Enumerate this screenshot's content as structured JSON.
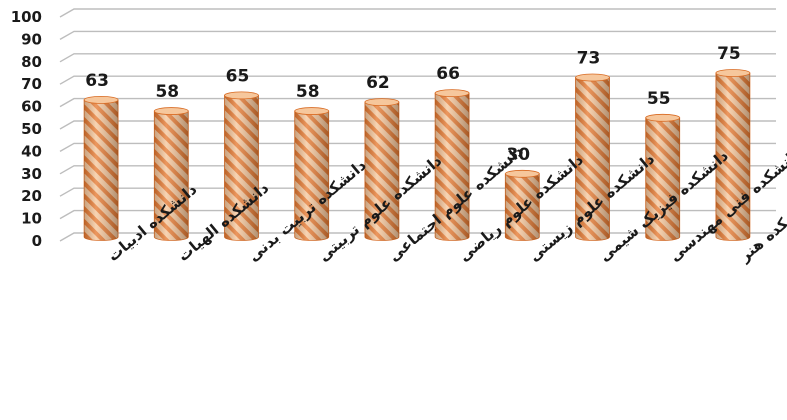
{
  "chart_data": {
    "type": "bar",
    "title": "",
    "xlabel": "",
    "ylabel": "",
    "ylim": [
      0,
      100
    ],
    "yticks": [
      0,
      10,
      20,
      30,
      40,
      50,
      60,
      70,
      80,
      90,
      100
    ],
    "grid": true,
    "legend": "none",
    "style": "3d-cylinder-hatched",
    "categories": [
      "دانشکده ادبیات",
      "دانشکده الهیات",
      "دانشکده تربیت بدنی",
      "دانشکده علوم تربیتی",
      "دانشکده علوم اجتماعی",
      "دانشکده علوم ریاضی",
      "دانشکده علوم زیستی",
      "دانشکده فیزیک شیمی",
      "دانشکده فنی مهندسی",
      "دانشکده هنر"
    ],
    "values": [
      63,
      58,
      65,
      58,
      62,
      66,
      30,
      73,
      55,
      75
    ],
    "colors": {
      "bar_base": "#f6c79c",
      "bar_stripe": "#e67a32",
      "bar_edge": "#d86a22",
      "grid": "#bdbdbd",
      "text": "#1a1a1a"
    }
  }
}
